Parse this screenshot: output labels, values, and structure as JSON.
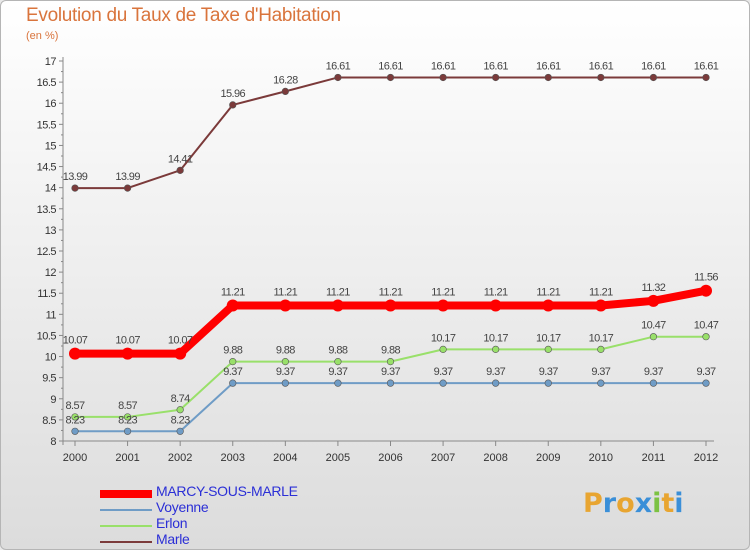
{
  "header": {
    "title": "Evolution du Taux de Taxe d'Habitation",
    "subtitle": "(en %)"
  },
  "chart_data": {
    "type": "line",
    "title": "Evolution du Taux de Taxe d'Habitation",
    "ylabel": "(en %)",
    "xlabel": "",
    "ylim": [
      8,
      17
    ],
    "yticks": [
      "8",
      "8.5",
      "9",
      "9.5",
      "10",
      "10.5",
      "11",
      "11.5",
      "12",
      "12.5",
      "13",
      "13.5",
      "14",
      "14.5",
      "15",
      "15.5",
      "16",
      "16.5",
      "17"
    ],
    "x": [
      "2000",
      "2001",
      "2002",
      "2003",
      "2004",
      "2005",
      "2006",
      "2007",
      "2008",
      "2009",
      "2010",
      "2011",
      "2012"
    ],
    "series": [
      {
        "name": "MARCY-SOUS-MARLE",
        "color": "#ff0000",
        "values": [
          10.07,
          10.07,
          10.07,
          11.21,
          11.21,
          11.21,
          11.21,
          11.21,
          11.21,
          11.21,
          11.21,
          11.32,
          11.56
        ],
        "labels": [
          "10.07",
          "10.07",
          "10.07",
          "11.21",
          "11.21",
          "11.21",
          "11.21",
          "11.21",
          "11.21",
          "11.21",
          "11.21",
          "11.32",
          "11.56"
        ]
      },
      {
        "name": "Voyenne",
        "color": "#6f9cc6",
        "values": [
          8.23,
          8.23,
          8.23,
          9.37,
          9.37,
          9.37,
          9.37,
          9.37,
          9.37,
          9.37,
          9.37,
          9.37,
          9.37
        ],
        "labels": [
          "8.23",
          "8.23",
          "8.23",
          "9.37",
          "9.37",
          "9.37",
          "9.37",
          "9.37",
          "9.37",
          "9.37",
          "9.37",
          "9.37",
          "9.37"
        ]
      },
      {
        "name": "Erlon",
        "color": "#99e06a",
        "values": [
          8.57,
          8.57,
          8.74,
          9.88,
          9.88,
          9.88,
          9.88,
          10.17,
          10.17,
          10.17,
          10.17,
          10.47,
          10.47
        ],
        "labels": [
          "8.57",
          "8.57",
          "8.74",
          "9.88",
          "9.88",
          "9.88",
          "9.88",
          "10.17",
          "10.17",
          "10.17",
          "10.17",
          "10.47",
          "10.47"
        ]
      },
      {
        "name": "Marle",
        "color": "#7b3a3a",
        "values": [
          13.99,
          13.99,
          14.41,
          15.96,
          16.28,
          16.61,
          16.61,
          16.61,
          16.61,
          16.61,
          16.61,
          16.61,
          16.61
        ],
        "labels": [
          "13.99",
          "13.99",
          "14.41",
          "15.96",
          "16.28",
          "16.61",
          "16.61",
          "16.61",
          "16.61",
          "16.61",
          "16.61",
          "16.61",
          "16.61"
        ]
      }
    ],
    "legend_position": "bottom-left"
  },
  "legend": {
    "items": [
      {
        "label": "MARCY-SOUS-MARLE",
        "color": "#ff0000"
      },
      {
        "label": "Voyenne",
        "color": "#6f9cc6"
      },
      {
        "label": "Erlon",
        "color": "#99e06a"
      },
      {
        "label": "Marle",
        "color": "#7b3a3a"
      }
    ]
  },
  "logo": {
    "text": "Proxiti",
    "letters": [
      "P",
      "r",
      "o",
      "x",
      "i",
      "t",
      "i"
    ],
    "colors": [
      "#e8a531",
      "#3a8fd8",
      "#e8a531",
      "#3a8fd8",
      "#7cc242",
      "#e8a531",
      "#3a8fd8"
    ]
  }
}
